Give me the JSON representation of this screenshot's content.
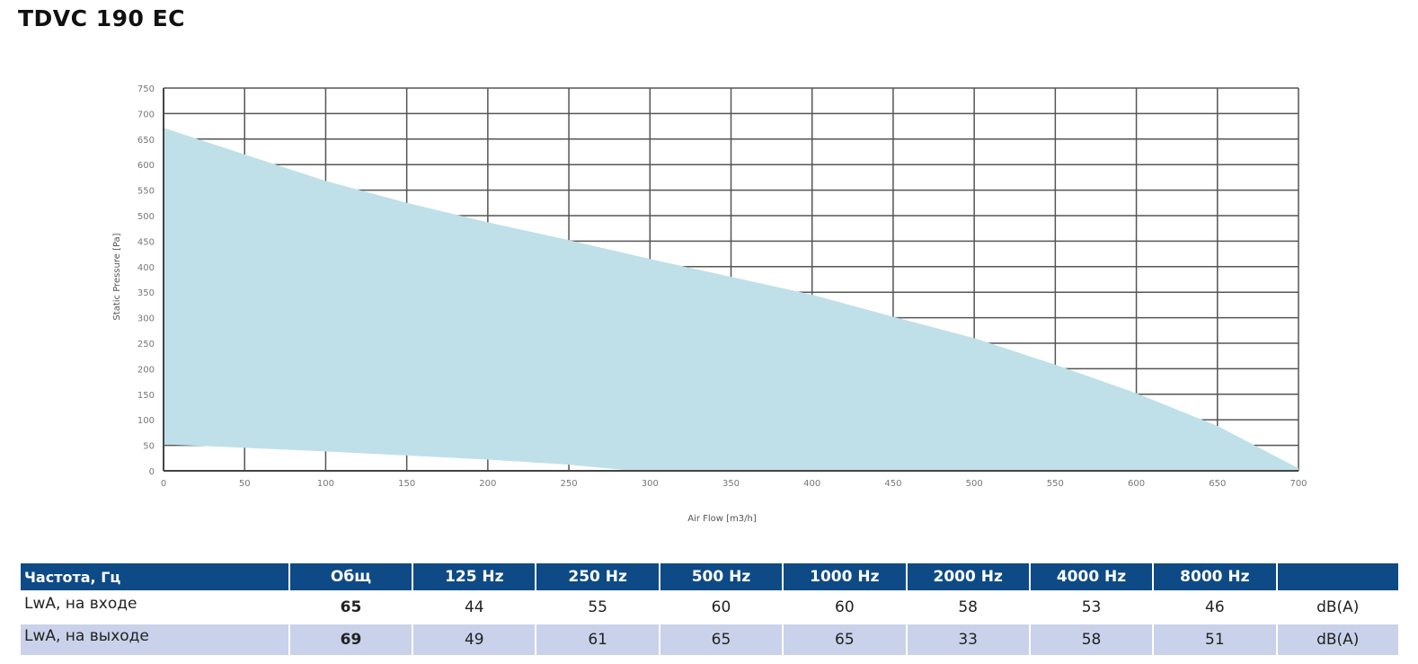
{
  "title": "TDVC 190 EC",
  "chart_data": {
    "type": "area",
    "xlabel": "Air Flow [m3/h]",
    "ylabel": "Static Pressure [Pa]",
    "xlim": [
      0,
      700
    ],
    "ylim": [
      0,
      750
    ],
    "x_ticks": [
      0,
      50,
      100,
      150,
      200,
      250,
      300,
      350,
      400,
      450,
      500,
      550,
      600,
      650,
      700
    ],
    "y_ticks": [
      0,
      50,
      100,
      150,
      200,
      250,
      300,
      350,
      400,
      450,
      500,
      550,
      600,
      650,
      700,
      750
    ],
    "grid": true,
    "fill_color": "#bfe0e9",
    "upper_curve": {
      "x": [
        0,
        50,
        100,
        150,
        200,
        250,
        300,
        350,
        400,
        450,
        500,
        550,
        600,
        650,
        700
      ],
      "y": [
        672,
        620,
        568,
        525,
        487,
        452,
        415,
        380,
        345,
        302,
        260,
        208,
        152,
        88,
        5
      ]
    },
    "lower_curve": {
      "x": [
        0,
        100,
        200,
        250,
        290,
        700
      ],
      "y": [
        52,
        38,
        22,
        12,
        0,
        0
      ]
    }
  },
  "table": {
    "headers": [
      "Частота, Гц",
      "Общ",
      "125 Hz",
      "250 Hz",
      "500 Hz",
      "1000 Hz",
      "2000 Hz",
      "4000 Hz",
      "8000 Hz",
      ""
    ],
    "rows": [
      {
        "label": "LwA, на входе",
        "total": "65",
        "values": [
          "44",
          "55",
          "60",
          "60",
          "58",
          "53",
          "46"
        ],
        "unit": "dB(A)"
      },
      {
        "label": "LwA, на выходе",
        "total": "69",
        "values": [
          "49",
          "61",
          "65",
          "65",
          "33",
          "58",
          "51"
        ],
        "unit": "dB(A)"
      }
    ]
  }
}
